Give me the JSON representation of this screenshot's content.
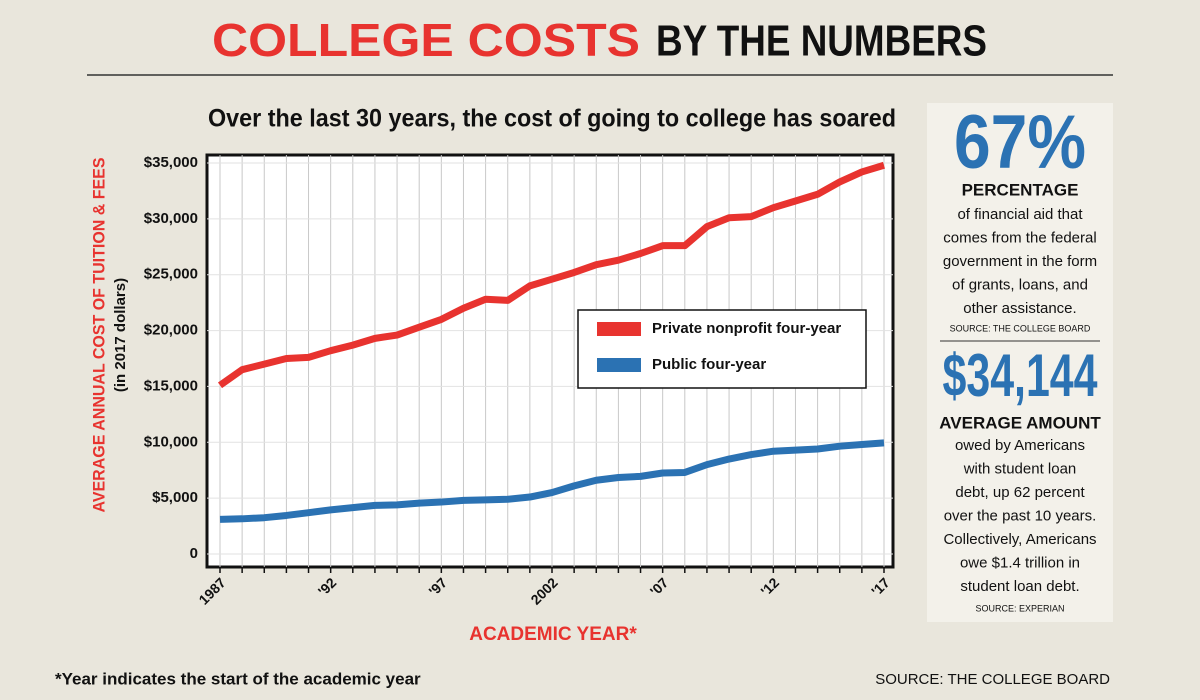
{
  "header": {
    "title_highlight": "COLLEGE COSTS",
    "title_rest": "BY THE NUMBERS"
  },
  "chart_data": {
    "type": "line",
    "title": "Over the last 30 years, the cost of going to college has soared",
    "y_label": "AVERAGE ANNUAL COST OF TUITION & FEES",
    "y_label_sub": "(in 2017 dollars)",
    "x_label": "ACADEMIC YEAR*",
    "x": [
      1987,
      1988,
      1989,
      1990,
      1991,
      1992,
      1993,
      1994,
      1995,
      1996,
      1997,
      1998,
      1999,
      2000,
      2001,
      2002,
      2003,
      2004,
      2005,
      2006,
      2007,
      2008,
      2009,
      2010,
      2011,
      2012,
      2013,
      2014,
      2015,
      2016,
      2017
    ],
    "series": [
      {
        "name": "Private nonprofit four-year",
        "color": "#e8332f",
        "values": [
          15100,
          16500,
          17000,
          17500,
          17600,
          18200,
          18700,
          19300,
          19600,
          20300,
          21000,
          22000,
          22800,
          22700,
          24000,
          24600,
          25200,
          25900,
          26300,
          26900,
          27600,
          27600,
          29300,
          30100,
          30200,
          31000,
          31600,
          32200,
          33300,
          34200,
          34800
        ]
      },
      {
        "name": "Public four-year",
        "color": "#2b72b3",
        "values": [
          3100,
          3150,
          3250,
          3450,
          3700,
          3950,
          4150,
          4350,
          4400,
          4550,
          4650,
          4800,
          4850,
          4900,
          5100,
          5500,
          6100,
          6600,
          6850,
          6950,
          7250,
          7300,
          8000,
          8500,
          8900,
          9200,
          9300,
          9400,
          9650,
          9800,
          9950
        ]
      }
    ],
    "xlim": [
      1987,
      2017
    ],
    "xticks": [
      1987,
      {
        "value": 1992,
        "label": "'92"
      },
      {
        "value": 1997,
        "label": "'97"
      },
      2002,
      {
        "value": 2007,
        "label": "'07"
      },
      {
        "value": 2012,
        "label": "'12"
      },
      {
        "value": 2017,
        "label": "'17"
      }
    ],
    "xminorticks": [
      1987,
      1988,
      1989,
      1990,
      1991,
      1992,
      1993,
      1994,
      1995,
      1996,
      1997,
      1998,
      1999,
      2000,
      2001,
      2002,
      2003,
      2004,
      2005,
      2006,
      2007,
      2008,
      2009,
      2010,
      2011,
      2012,
      2013,
      2014,
      2015,
      2016,
      2017
    ],
    "ylim": [
      0,
      35000
    ],
    "yticks": [
      {
        "value": 0,
        "label": "0"
      },
      {
        "value": 5000,
        "label": "$5,000"
      },
      {
        "value": 10000,
        "label": "$10,000"
      },
      {
        "value": 15000,
        "label": "$15,000"
      },
      {
        "value": 20000,
        "label": "$20,000"
      },
      {
        "value": 25000,
        "label": "$25,000"
      },
      {
        "value": 30000,
        "label": "$30,000"
      },
      {
        "value": 35000,
        "label": "$35,000"
      }
    ],
    "grid": true,
    "legend": "center-right"
  },
  "sidebar": {
    "stat1": "67%",
    "stat1_label": "PERCENTAGE",
    "stat1_text": [
      "of financial aid that",
      "comes from the federal",
      "government in the form",
      "of grants, loans, and",
      "other assistance."
    ],
    "stat1_source": "SOURCE: THE COLLEGE BOARD",
    "stat2": "$34,144",
    "stat2_label": "AVERAGE AMOUNT",
    "stat2_text": [
      "owed by Americans",
      "with student loan",
      "debt, up 62 percent",
      "over the past 10 years.",
      "Collectively, Americans",
      "owe $1.4 trillion in",
      "student loan debt."
    ],
    "stat2_source": "SOURCE: EXPERIAN"
  },
  "footer": {
    "note": "*Year indicates the start of the academic year",
    "source": "SOURCE: THE COLLEGE BOARD"
  }
}
